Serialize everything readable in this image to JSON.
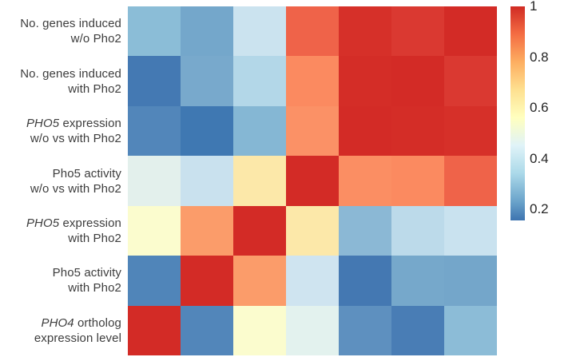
{
  "colors": {
    "background": "#ffffff",
    "label_text": "#3d3d3d",
    "tick_text": "#262626"
  },
  "chart_data": {
    "type": "heatmap",
    "title": "",
    "xlabel": "",
    "ylabel": "",
    "grid": false,
    "legend_position": "colorbar-right",
    "rows": [
      {
        "label_lines": [
          [
            {
              "text": "No. genes induced",
              "italic": false
            }
          ],
          [
            {
              "text": "w/o Pho2",
              "italic": false
            }
          ]
        ]
      },
      {
        "label_lines": [
          [
            {
              "text": "No. genes induced",
              "italic": false
            }
          ],
          [
            {
              "text": "with Pho2",
              "italic": false
            }
          ]
        ]
      },
      {
        "label_lines": [
          [
            {
              "text": "PHO5",
              "italic": true
            },
            {
              "text": " expression",
              "italic": false
            }
          ],
          [
            {
              "text": "w/o vs with Pho2",
              "italic": false
            }
          ]
        ]
      },
      {
        "label_lines": [
          [
            {
              "text": "Pho5 activity",
              "italic": false
            }
          ],
          [
            {
              "text": "w/o vs with Pho2",
              "italic": false
            }
          ]
        ]
      },
      {
        "label_lines": [
          [
            {
              "text": "PHO5",
              "italic": true
            },
            {
              "text": " expression",
              "italic": false
            }
          ],
          [
            {
              "text": "with Pho2",
              "italic": false
            }
          ]
        ]
      },
      {
        "label_lines": [
          [
            {
              "text": "Pho5 activity",
              "italic": false
            }
          ],
          [
            {
              "text": "with Pho2",
              "italic": false
            }
          ]
        ]
      },
      {
        "label_lines": [
          [
            {
              "text": "PHO4",
              "italic": true
            },
            {
              "text": " ortholog",
              "italic": false
            }
          ],
          [
            {
              "text": "expression level",
              "italic": false
            }
          ]
        ]
      }
    ],
    "cells_values": [
      [
        0.33,
        0.26,
        0.44,
        0.88,
        0.98,
        0.96,
        1.0
      ],
      [
        0.16,
        0.27,
        0.39,
        0.83,
        0.99,
        1.0,
        0.96
      ],
      [
        0.2,
        0.15,
        0.31,
        0.81,
        1.0,
        0.99,
        0.98
      ],
      [
        0.48,
        0.43,
        0.69,
        1.0,
        0.82,
        0.83,
        0.88
      ],
      [
        0.58,
        0.79,
        1.0,
        0.69,
        0.32,
        0.4,
        0.44
      ],
      [
        0.19,
        1.0,
        0.79,
        0.45,
        0.15,
        0.27,
        0.26
      ],
      [
        1.0,
        0.19,
        0.58,
        0.48,
        0.22,
        0.16,
        0.33
      ]
    ],
    "cells_colors": [
      [
        "#8bbdd7",
        "#74a7cb",
        "#cbe3ef",
        "#ef6349",
        "#d63029",
        "#da3931",
        "#d32b26"
      ],
      [
        "#4479b3",
        "#78a9cc",
        "#b3d7e8",
        "#fb8a60",
        "#d42d27",
        "#d32b26",
        "#da3931"
      ],
      [
        "#5286ba",
        "#3f78b2",
        "#85b7d4",
        "#fb9166",
        "#d32b26",
        "#d42d27",
        "#d63029"
      ],
      [
        "#e3f0ec",
        "#c9e1ee",
        "#fce8a9",
        "#d32b26",
        "#fb8e63",
        "#fb8a60",
        "#ef6349"
      ],
      [
        "#fbfcce",
        "#fb9c6a",
        "#d32b26",
        "#fce8a9",
        "#8bb8d5",
        "#bcdaea",
        "#c9e2ef"
      ],
      [
        "#5085b9",
        "#d32b26",
        "#fb9c6a",
        "#cfe4f0",
        "#4478b2",
        "#76a8cb",
        "#74a6ca"
      ],
      [
        "#d32b26",
        "#5286ba",
        "#fbfcce",
        "#e3f2ee",
        "#5e90bf",
        "#497db5",
        "#8cbcd7"
      ]
    ],
    "colorbar": {
      "tick_labels": [
        "1",
        "0.8",
        "0.6",
        "0.4",
        "0.2"
      ],
      "tick_values": [
        1,
        0.8,
        0.6,
        0.4,
        0.2
      ],
      "tick_positions_pct": [
        0,
        23.7,
        47.4,
        71.2,
        94.9
      ],
      "gradient_stops": [
        {
          "pct": 0,
          "color": "#d02b24"
        },
        {
          "pct": 13,
          "color": "#f46d43"
        },
        {
          "pct": 26,
          "color": "#fdae61"
        },
        {
          "pct": 39,
          "color": "#fee090"
        },
        {
          "pct": 52,
          "color": "#ffffbf"
        },
        {
          "pct": 65,
          "color": "#e0f3f8"
        },
        {
          "pct": 78,
          "color": "#abd9e9"
        },
        {
          "pct": 91,
          "color": "#6ba4cb"
        },
        {
          "pct": 100,
          "color": "#3e74b0"
        }
      ]
    }
  }
}
